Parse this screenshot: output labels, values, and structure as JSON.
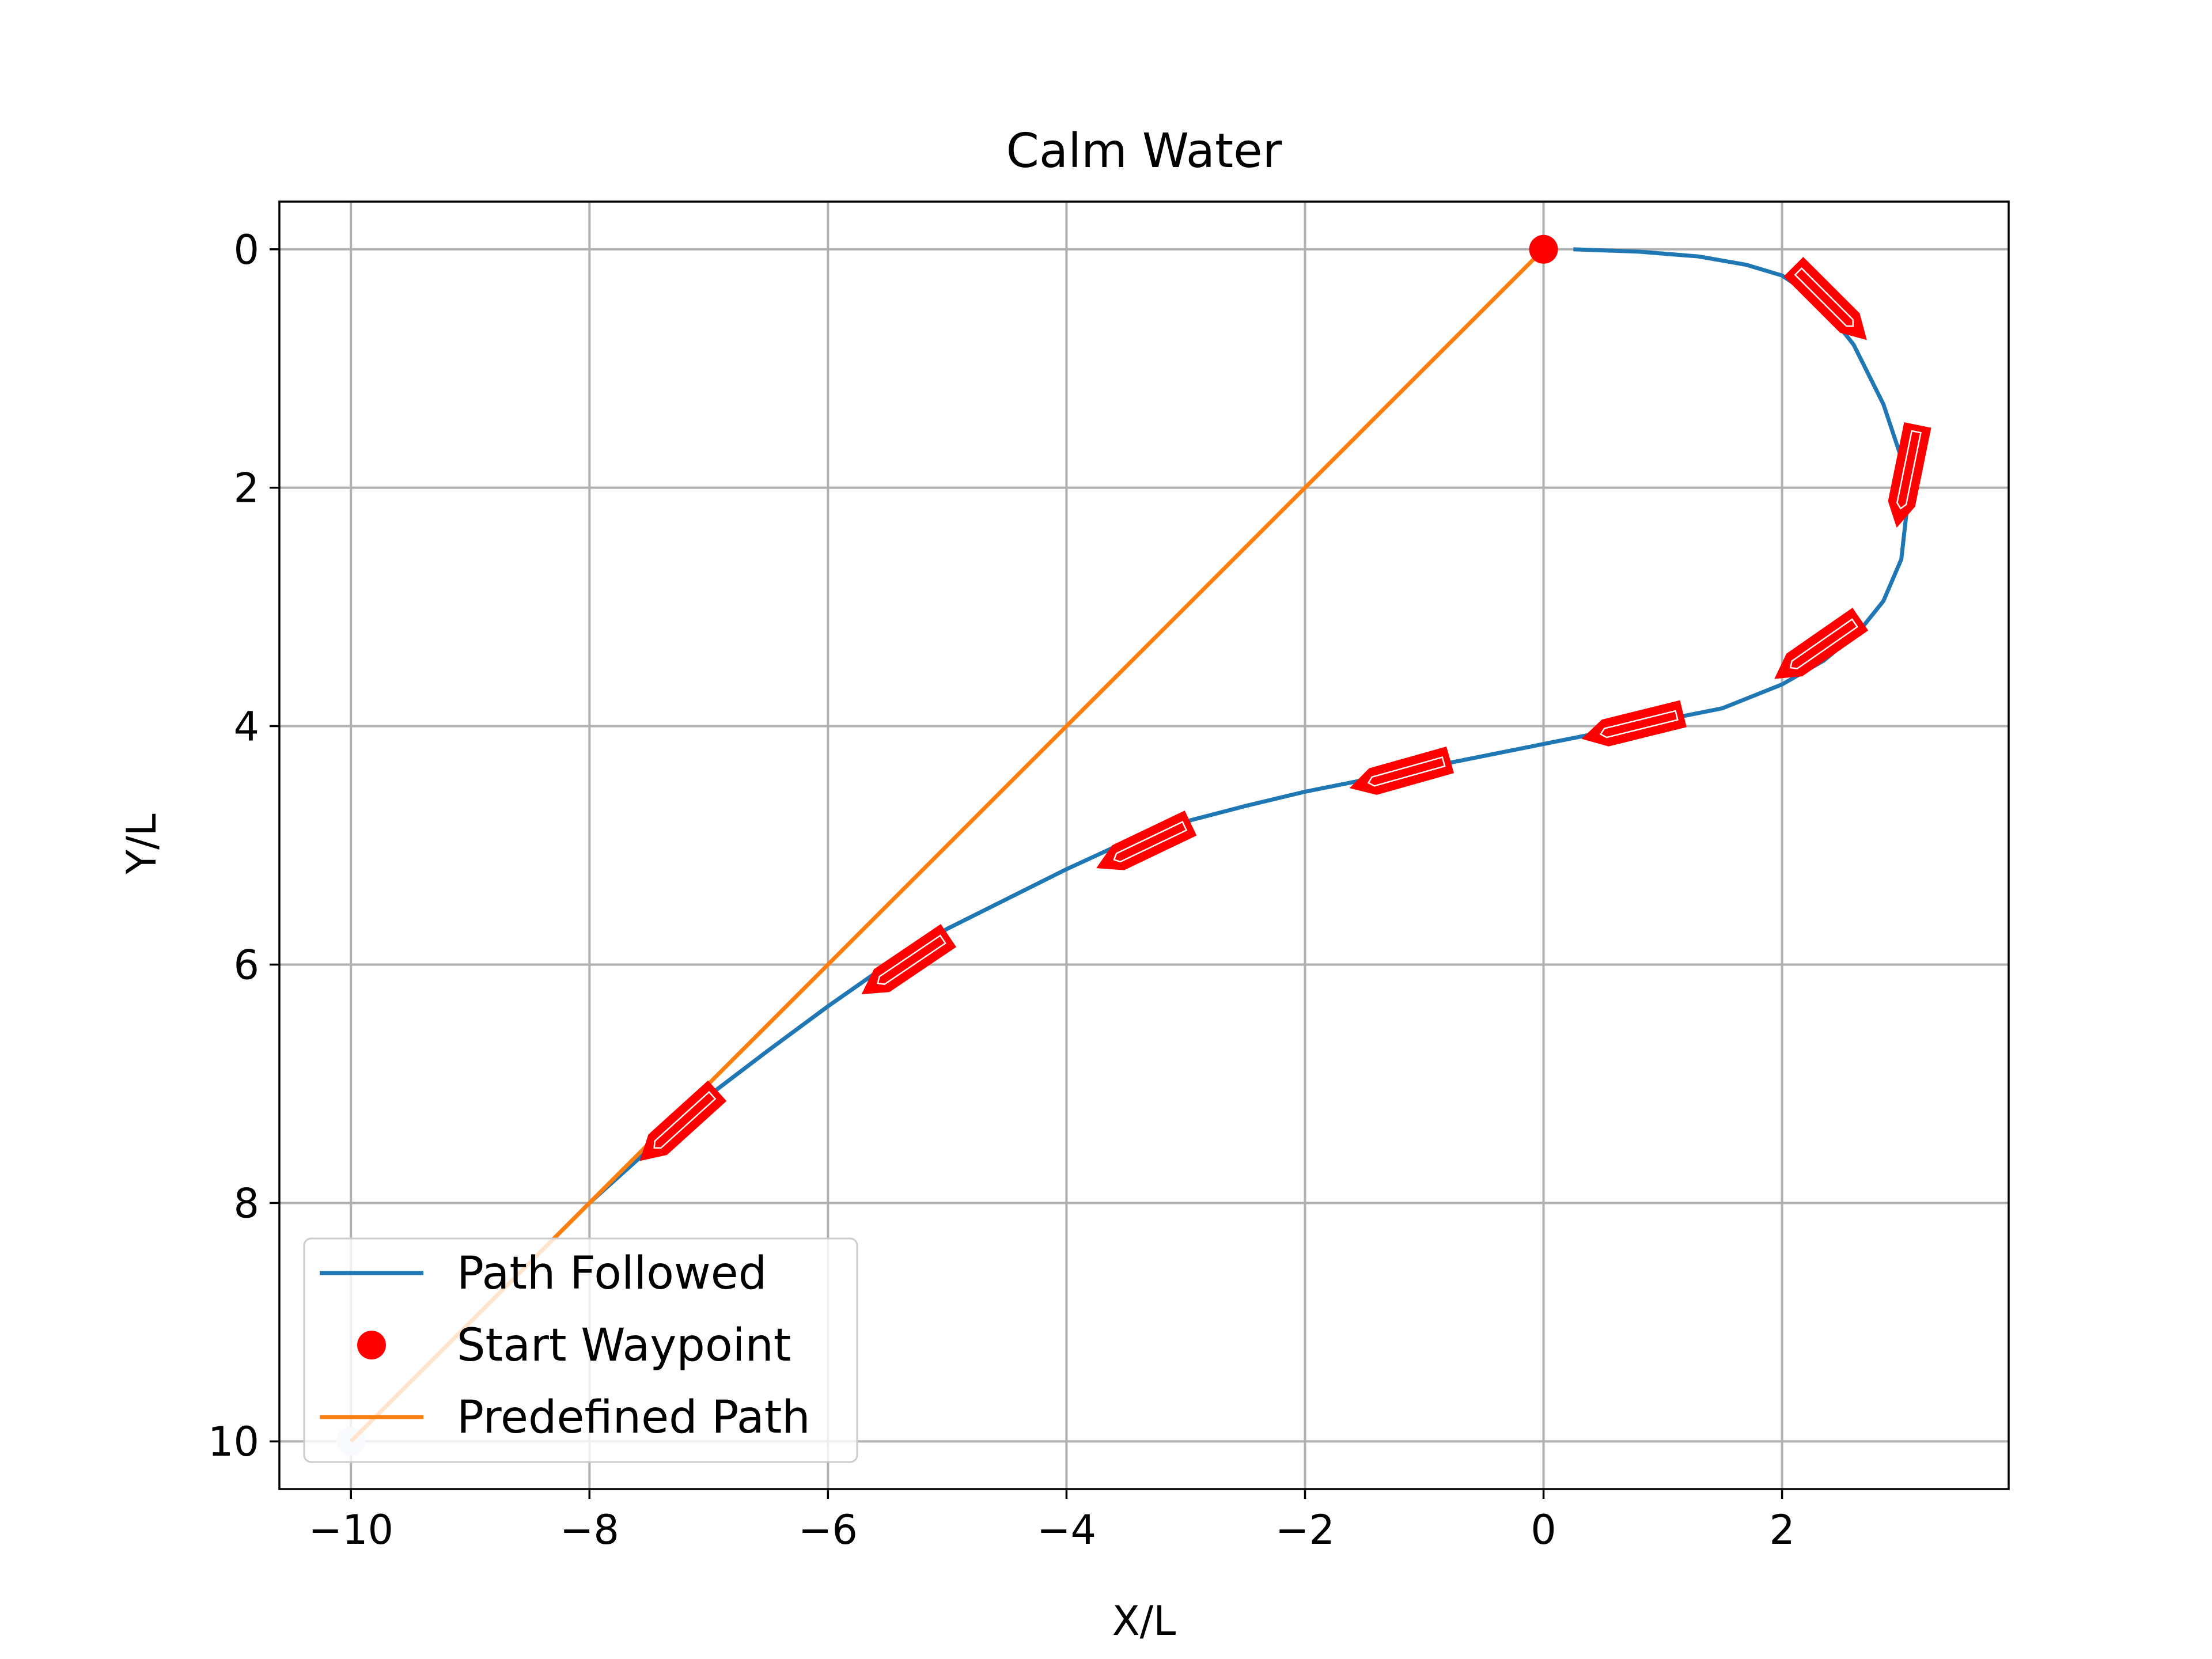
{
  "chart_data": {
    "type": "line",
    "title": "Calm Water",
    "xlabel": "X/L",
    "ylabel": "Y/L",
    "xlim": [
      -10.6,
      3.9
    ],
    "ylim": [
      10.4,
      -0.4
    ],
    "y_axis_inverted": true,
    "grid": true,
    "legend_position": "lower-left",
    "x_ticks": [
      -10,
      -8,
      -6,
      -4,
      -2,
      0,
      2
    ],
    "x_tick_labels": [
      "−10",
      "−8",
      "−6",
      "−4",
      "−2",
      "0",
      "2"
    ],
    "y_ticks": [
      0,
      2,
      4,
      6,
      8,
      10
    ],
    "y_tick_labels": [
      "0",
      "2",
      "4",
      "6",
      "8",
      "10"
    ],
    "series": [
      {
        "name": "Path Followed",
        "kind": "line",
        "color": "#1f77b4",
        "x": [
          0.25,
          0.8,
          1.3,
          1.7,
          2.0,
          2.3,
          2.6,
          2.85,
          3.0,
          3.05,
          3.0,
          2.85,
          2.65,
          2.35,
          2.0,
          1.5,
          1.0,
          0.5,
          0.0,
          -0.5,
          -1.0,
          -1.5,
          -2.0,
          -2.5,
          -3.0,
          -3.5,
          -4.0,
          -4.5,
          -5.0,
          -5.5,
          -6.0,
          -6.5,
          -7.0,
          -7.5,
          -8.0,
          -8.3
        ],
        "y": [
          0.0,
          0.02,
          0.06,
          0.13,
          0.22,
          0.42,
          0.8,
          1.3,
          1.75,
          2.15,
          2.6,
          2.95,
          3.2,
          3.45,
          3.65,
          3.85,
          3.95,
          4.05,
          4.15,
          4.25,
          4.35,
          4.45,
          4.55,
          4.67,
          4.8,
          4.97,
          5.2,
          5.45,
          5.7,
          6.0,
          6.35,
          6.72,
          7.1,
          7.55,
          8.0,
          8.3
        ]
      },
      {
        "name": "Start Waypoint",
        "kind": "marker",
        "color": "#ff0000",
        "x": [
          0
        ],
        "y": [
          0
        ]
      },
      {
        "name": "Predefined Path",
        "kind": "line",
        "color": "#ff7f0e",
        "x": [
          -10,
          0
        ],
        "y": [
          10,
          0
        ]
      }
    ],
    "end_waypoint": {
      "x": -10,
      "y": 10,
      "color": "#dbe6f3"
    },
    "vessel_markers": {
      "color": "#ff0000",
      "length": 0.85,
      "points": [
        {
          "x": 2.4,
          "y": 0.45,
          "heading": [
            0.7,
            0.7
          ]
        },
        {
          "x": 3.05,
          "y": 1.9,
          "heading": [
            -0.2,
            0.98
          ]
        },
        {
          "x": 2.3,
          "y": 3.35,
          "heading": [
            -0.82,
            0.57
          ]
        },
        {
          "x": 0.75,
          "y": 4.0,
          "heading": [
            -0.97,
            0.24
          ]
        },
        {
          "x": -1.2,
          "y": 4.4,
          "heading": [
            -0.96,
            0.27
          ]
        },
        {
          "x": -3.35,
          "y": 5.0,
          "heading": [
            -0.9,
            0.43
          ]
        },
        {
          "x": -5.35,
          "y": 6.0,
          "heading": [
            -0.83,
            0.56
          ]
        },
        {
          "x": -7.25,
          "y": 7.35,
          "heading": [
            -0.74,
            0.67
          ]
        }
      ]
    }
  }
}
